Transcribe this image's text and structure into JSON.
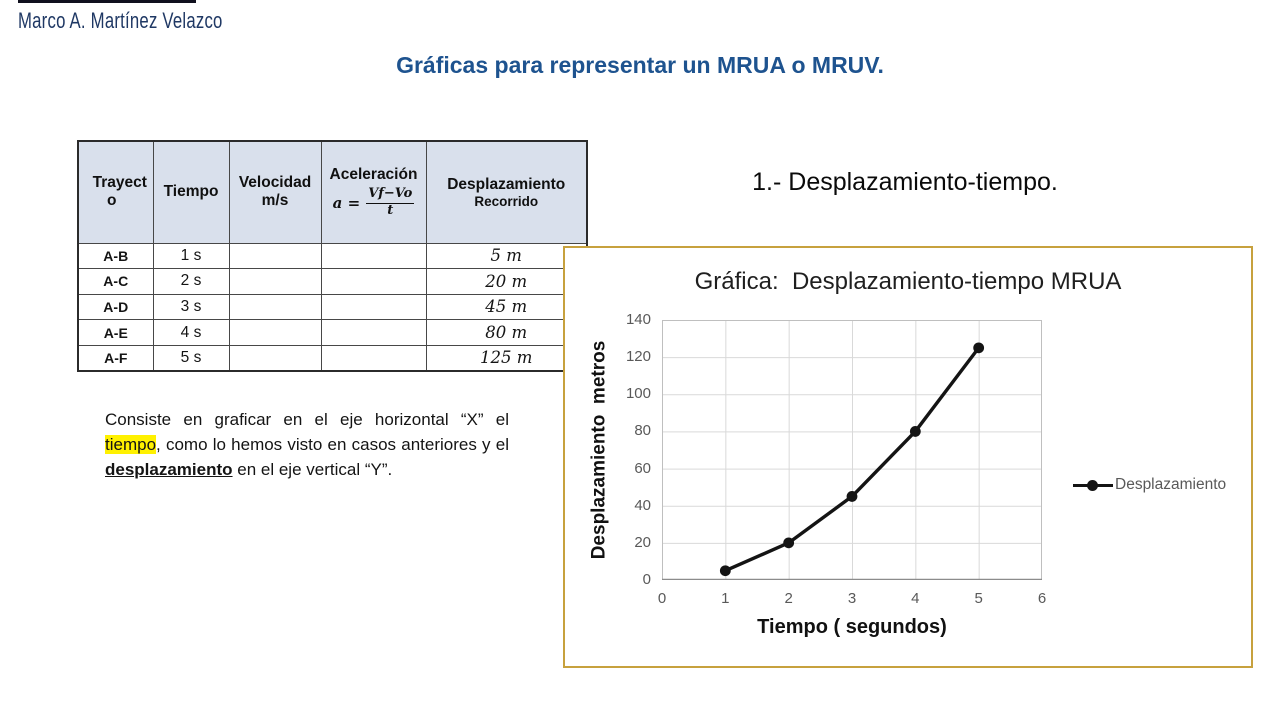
{
  "page": {
    "author": "Marco A. Martínez Velazco",
    "title": "Gráficas para representar un MRUA o MRUV."
  },
  "table": {
    "columns": [
      {
        "label": "Trayecto"
      },
      {
        "label": "Tiempo"
      },
      {
        "label": "Velocidad",
        "sub": "m/s"
      },
      {
        "label": "Aceleración",
        "formula": {
          "lhs": "a =",
          "numerator": "Vf−Vo",
          "denominator": "t"
        }
      },
      {
        "label": "Desplazamiento",
        "sub": "Recorrido"
      }
    ],
    "rows": [
      {
        "trayecto": "A-B",
        "tiempo": "1 s",
        "velocidad": "",
        "aceleracion": "",
        "desplazamiento": "5 m"
      },
      {
        "trayecto": "A-C",
        "tiempo": "2 s",
        "velocidad": "",
        "aceleracion": "",
        "desplazamiento": "20 m"
      },
      {
        "trayecto": "A-D",
        "tiempo": "3 s",
        "velocidad": "",
        "aceleracion": "",
        "desplazamiento": "45 m"
      },
      {
        "trayecto": "A-E",
        "tiempo": "4 s",
        "velocidad": "",
        "aceleracion": "",
        "desplazamiento": "80 m"
      },
      {
        "trayecto": "A-F",
        "tiempo": "5 s",
        "velocidad": "",
        "aceleracion": "",
        "desplazamiento": "125 m"
      }
    ]
  },
  "paragraph": {
    "segments": [
      {
        "text": "Consiste en graficar en el eje horizontal “X” el "
      },
      {
        "text": "tiempo",
        "style": "highlight"
      },
      {
        "text": ", como lo hemos visto en casos anteriores y el "
      },
      {
        "text": "desplazamiento",
        "style": "bold-underline"
      },
      {
        "text": " en el eje vertical “Y”."
      }
    ]
  },
  "section": {
    "heading": "1.- Desplazamiento-tiempo."
  },
  "chart_data": {
    "type": "line",
    "title": "Gráfica:  Desplazamiento-tiempo MRUA",
    "xlabel": "Tiempo ( segundos)",
    "ylabel": "Desplazamiento  metros",
    "legend": "Desplazamiento",
    "x": [
      1,
      2,
      3,
      4,
      5
    ],
    "y": [
      5,
      20,
      45,
      80,
      125
    ],
    "xlim": [
      0,
      6
    ],
    "ylim": [
      0,
      140
    ],
    "xticks": [
      0,
      1,
      2,
      3,
      4,
      5,
      6
    ],
    "yticks": [
      0,
      20,
      40,
      60,
      80,
      100,
      120,
      140
    ],
    "grid": true,
    "legend_position": "right",
    "series_color": "#141414",
    "gridline_color": "#D9D9D9",
    "plot_border_color": "#BFBFBF",
    "axis_line_color": "#8C8C8C",
    "tick_label_color": "#595959"
  },
  "colors": {
    "title_blue": "#1E538F",
    "author_navy": "#1F3864",
    "table_header_bg": "#D9E0EC",
    "highlight_yellow": "#FFF100",
    "chart_border_gold": "#C7A13E"
  }
}
